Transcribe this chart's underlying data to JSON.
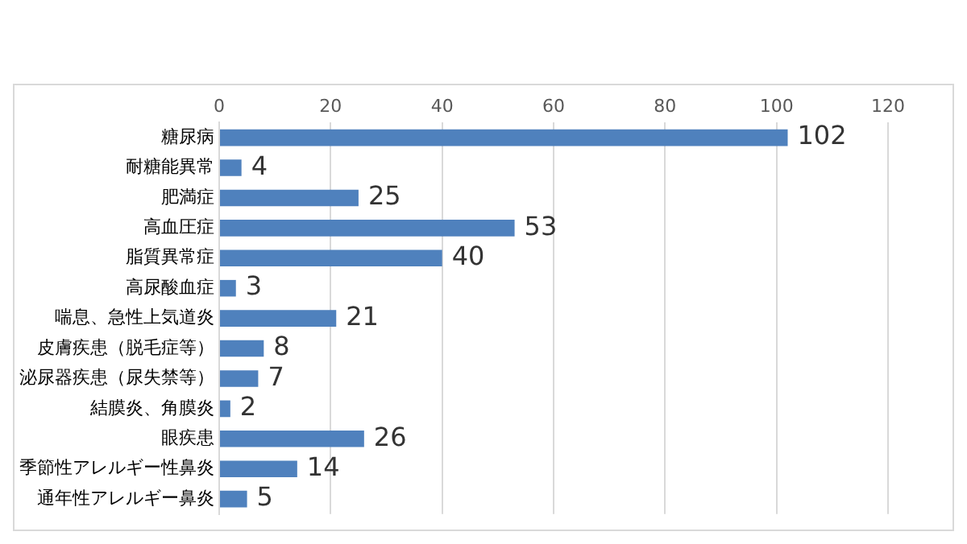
{
  "chart_data": {
    "type": "bar",
    "orientation": "horizontal",
    "categories": [
      "糖尿病",
      "耐糖能異常",
      "肥満症",
      "高血圧症",
      "脂質異常症",
      "高尿酸血症",
      "喘息、急性上気道炎",
      "皮膚疾患（脱毛症等）",
      "泌尿器疾患（尿失禁等）",
      "結膜炎、角膜炎",
      "眼疾患",
      "季節性アレルギー性鼻炎",
      "通年性アレルギー鼻炎"
    ],
    "values": [
      102,
      4,
      25,
      53,
      40,
      3,
      21,
      8,
      7,
      2,
      26,
      14,
      5
    ],
    "color": "#4f81bd",
    "xlim": [
      0,
      120
    ],
    "xticks": [
      0,
      20,
      40,
      60,
      80,
      100,
      120
    ],
    "grid": "x",
    "data_labels": true,
    "legend": false
  }
}
